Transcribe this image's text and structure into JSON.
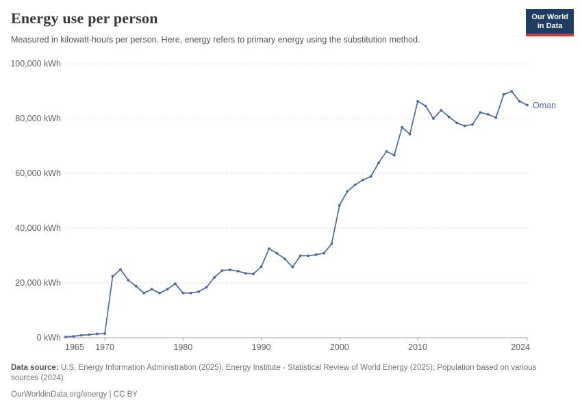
{
  "header": {
    "title": "Energy use per person",
    "subtitle": "Measured in kilowatt-hours per person. Here, energy refers to primary energy using the substitution method.",
    "logo_line1": "Our World",
    "logo_line2": "in Data",
    "logo_bg_color": "#1d3d63",
    "logo_accent_color": "#dc362c"
  },
  "chart_data": {
    "type": "line",
    "title": "Energy use per person",
    "unit": "kWh",
    "grid": "horizontal-dashed",
    "legend": "line-end-label",
    "xlim": [
      1965,
      2024
    ],
    "ylim": [
      0,
      100000
    ],
    "x": [
      1965,
      1966,
      1967,
      1968,
      1969,
      1970,
      1971,
      1972,
      1973,
      1974,
      1975,
      1976,
      1977,
      1978,
      1979,
      1980,
      1981,
      1982,
      1983,
      1984,
      1985,
      1986,
      1987,
      1988,
      1989,
      1990,
      1991,
      1992,
      1993,
      1994,
      1995,
      1996,
      1997,
      1998,
      1999,
      2000,
      2001,
      2002,
      2003,
      2004,
      2005,
      2006,
      2007,
      2008,
      2009,
      2010,
      2011,
      2012,
      2013,
      2014,
      2015,
      2016,
      2017,
      2018,
      2019,
      2020,
      2021,
      2022,
      2023,
      2024
    ],
    "series": [
      {
        "name": "Oman",
        "color": "#4c6a9c",
        "values": [
          300,
          500,
          900,
          1100,
          1400,
          1500,
          22400,
          24900,
          21000,
          18800,
          16300,
          17700,
          16300,
          17700,
          19700,
          16300,
          16300,
          16800,
          18400,
          22000,
          24500,
          24800,
          24300,
          23500,
          23300,
          25900,
          32500,
          30800,
          28800,
          25800,
          29900,
          29900,
          30300,
          30800,
          34300,
          48300,
          53400,
          55800,
          57600,
          58800,
          63800,
          68000,
          66600,
          76800,
          74300,
          86300,
          84600,
          80000,
          83000,
          80600,
          78400,
          77300,
          77800,
          82200,
          81500,
          80300,
          88800,
          89900,
          86300,
          84900
        ]
      }
    ],
    "yticks": [
      {
        "value": 0,
        "label": "0 kWh"
      },
      {
        "value": 20000,
        "label": "20,000 kWh"
      },
      {
        "value": 40000,
        "label": "40,000 kWh"
      },
      {
        "value": 60000,
        "label": "60,000 kWh"
      },
      {
        "value": 80000,
        "label": "80,000 kWh"
      },
      {
        "value": 100000,
        "label": "100,000 kWh"
      }
    ],
    "xticks": [
      {
        "value": 1965,
        "label": "1965",
        "anchor": "start"
      },
      {
        "value": 1970,
        "label": "1970",
        "anchor": "middle"
      },
      {
        "value": 1980,
        "label": "1980",
        "anchor": "middle"
      },
      {
        "value": 1990,
        "label": "1990",
        "anchor": "middle"
      },
      {
        "value": 2000,
        "label": "2000",
        "anchor": "middle"
      },
      {
        "value": 2010,
        "label": "2010",
        "anchor": "middle"
      },
      {
        "value": 2024,
        "label": "2024",
        "anchor": "end"
      }
    ],
    "colors": {
      "gridline": "#dcdcdc",
      "axis": "#a1a1a1",
      "tick_label": "#606060"
    }
  },
  "footer": {
    "data_source_label": "Data source:",
    "data_source_text": "U.S. Energy Information Administration (2025); Energy Institute - Statistical Review of World Energy (2025); Population based on various sources (2024)",
    "attribution": "OurWorldinData.org/energy | CC BY"
  }
}
